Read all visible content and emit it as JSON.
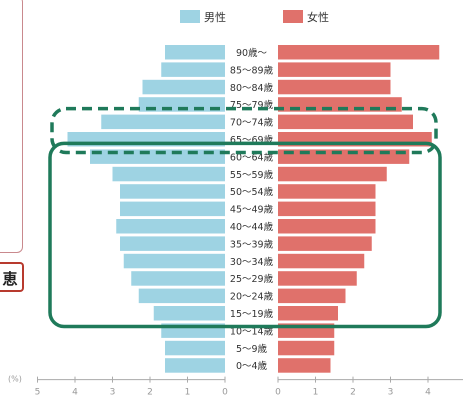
{
  "side_label": "恵",
  "chart_data": {
    "type": "bar",
    "orientation": "horizontal-population-pyramid",
    "categories": [
      "90歳～",
      "85～89歳",
      "80～84歳",
      "75～79歳",
      "70～74歳",
      "65～69歳",
      "60～64歳",
      "55～59歳",
      "50～54歳",
      "45～49歳",
      "40～44歳",
      "35～39歳",
      "30～34歳",
      "25～29歳",
      "20～24歳",
      "15～19歳",
      "10～14歳",
      "5～9歳",
      "0～4歳"
    ],
    "series": [
      {
        "name": "男性",
        "color": "#9ed3e3",
        "values": [
          1.6,
          1.7,
          2.2,
          2.3,
          3.3,
          4.2,
          3.6,
          3.0,
          2.8,
          2.8,
          2.9,
          2.8,
          2.7,
          2.5,
          2.3,
          1.9,
          1.7,
          1.6,
          1.6
        ]
      },
      {
        "name": "女性",
        "color": "#e0716b",
        "values": [
          4.3,
          3.0,
          3.0,
          3.3,
          3.6,
          4.1,
          3.5,
          2.9,
          2.6,
          2.6,
          2.6,
          2.5,
          2.3,
          2.1,
          1.8,
          1.6,
          1.5,
          1.5,
          1.4
        ]
      }
    ],
    "xlabel": "(%)",
    "x_ticks_left": [
      "5",
      "4",
      "3",
      "2",
      "1",
      "0"
    ],
    "x_ticks_right": [
      "0",
      "1",
      "2",
      "3",
      "4",
      "5"
    ],
    "xlim": [
      0,
      5
    ],
    "legend_position": "top",
    "annotations": [
      {
        "style": "dashed",
        "color": "#1f7a5a",
        "rows": [
          "70～74歳",
          "65～69歳"
        ]
      },
      {
        "style": "solid",
        "color": "#1f7a5a",
        "rows": [
          "60～64歳",
          "15～19歳"
        ]
      }
    ]
  }
}
